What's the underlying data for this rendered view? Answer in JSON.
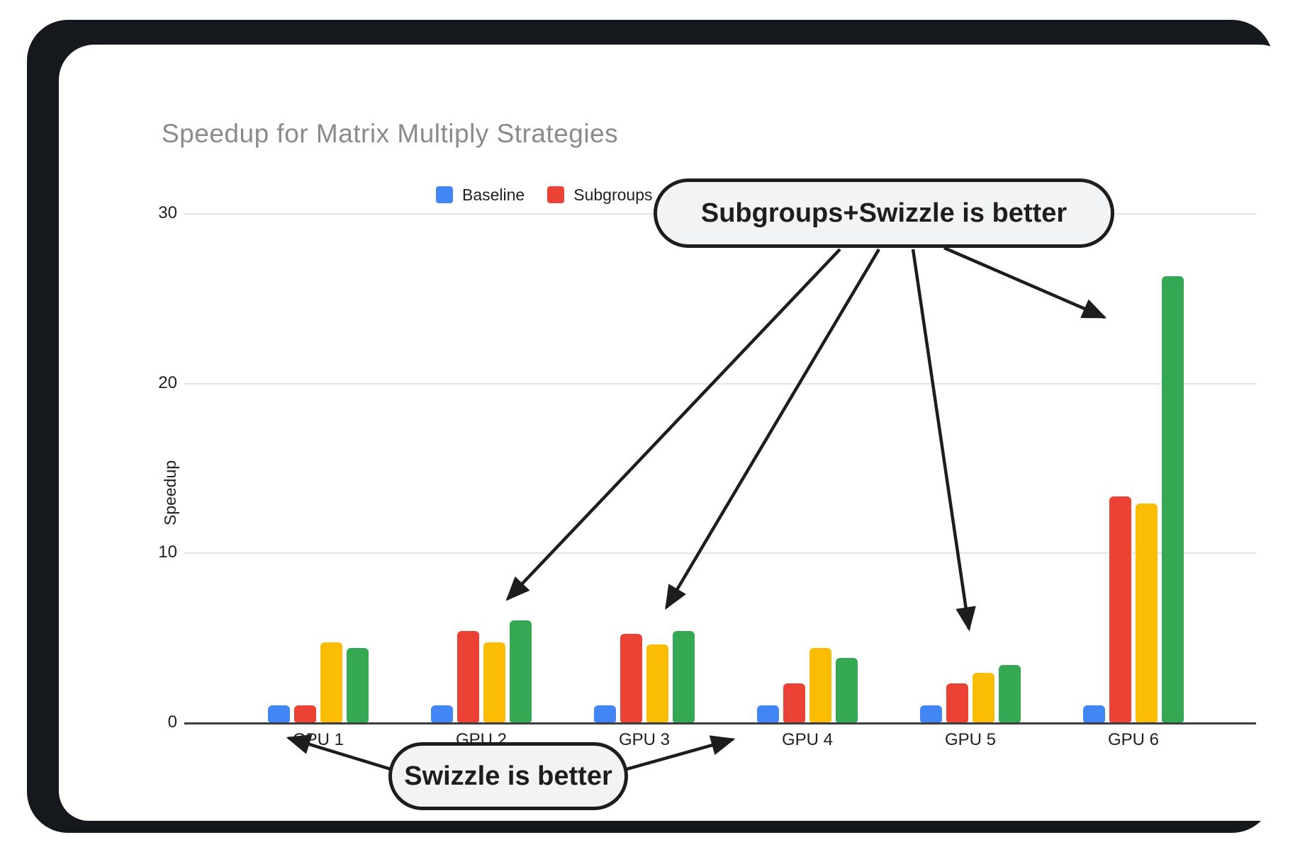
{
  "chart_data": {
    "type": "bar",
    "title": "Speedup for Matrix Multiply Strategies",
    "categories": [
      "GPU 1",
      "GPU 2",
      "GPU 3",
      "GPU 4",
      "GPU 5",
      "GPU 6"
    ],
    "series": [
      {
        "name": "Baseline",
        "color": "#4285F4",
        "values": [
          1.0,
          1.0,
          1.0,
          1.0,
          1.0,
          1.0
        ]
      },
      {
        "name": "Subgroups",
        "color": "#EA4335",
        "values": [
          1.0,
          5.4,
          5.2,
          2.3,
          2.3,
          13.3
        ]
      },
      {
        "name": "Swizzle",
        "color": "#FBBC04",
        "values": [
          4.7,
          4.7,
          4.6,
          4.4,
          2.9,
          12.9
        ]
      },
      {
        "name": "Subgroups+Swizzle",
        "color": "#34A853",
        "values": [
          4.4,
          6.0,
          5.4,
          3.8,
          3.4,
          26.3
        ]
      }
    ],
    "xlabel": "",
    "ylabel": "Speedup",
    "yticks": [
      0,
      10,
      20,
      30
    ],
    "ylim": [
      0,
      30
    ],
    "grid": true,
    "legend_position": "top"
  },
  "annotations": [
    {
      "text": "Subgroups+Swizzle is better",
      "points_to": [
        "GPU 2 green bar",
        "GPU 3 green bar",
        "GPU 5 green bar",
        "GPU 6 green bar"
      ]
    },
    {
      "text": "Swizzle is better",
      "points_to": [
        "GPU 1 group",
        "GPU 4 group"
      ]
    }
  ],
  "colors": {
    "frame": "#15181d",
    "annotation_fill": "#f1f3f4",
    "annotation_border": "#1d1d1d",
    "gridline": "#e4e4e4",
    "axis": "#3b3d40",
    "title_text": "#8a8a8a",
    "label_text": "#202124"
  }
}
